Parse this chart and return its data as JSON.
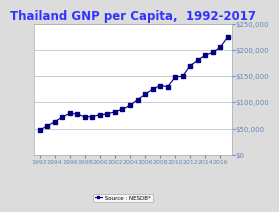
{
  "title": "Thailand GNP per Capita,  1992-2017",
  "title_color": "#3333FF",
  "title_fontsize": 8.5,
  "years": [
    1992,
    1993,
    1994,
    1995,
    1996,
    1997,
    1998,
    1999,
    2000,
    2001,
    2002,
    2003,
    2004,
    2005,
    2006,
    2007,
    2008,
    2009,
    2010,
    2011,
    2012,
    2013,
    2014,
    2015,
    2016,
    2017
  ],
  "values": [
    47000,
    55000,
    63000,
    72000,
    79000,
    78000,
    72000,
    73000,
    76000,
    78000,
    82000,
    87000,
    94000,
    105000,
    115000,
    125000,
    132000,
    130000,
    148000,
    150000,
    170000,
    180000,
    190000,
    195000,
    205000,
    225000
  ],
  "line_color": "#000080",
  "marker": "s",
  "marker_size": 2.5,
  "ylim": [
    0,
    250000
  ],
  "yticks": [
    0,
    50000,
    100000,
    150000,
    200000,
    250000
  ],
  "xtick_years_start": 1992,
  "xtick_years_end": 2017,
  "xtick_years_step": 2,
  "legend_label": " Source : NESDB*",
  "background_color": "#dcdcdc",
  "plot_bg_color": "#ffffff",
  "grid_color": "#b0b8c8",
  "ytick_label_color": "#6688bb",
  "xtick_label_color": "#6688bb",
  "ytick_labels": [
    "$0",
    "$50,000",
    "$100,000",
    "$150,000",
    "$200,000",
    "$250,000"
  ]
}
